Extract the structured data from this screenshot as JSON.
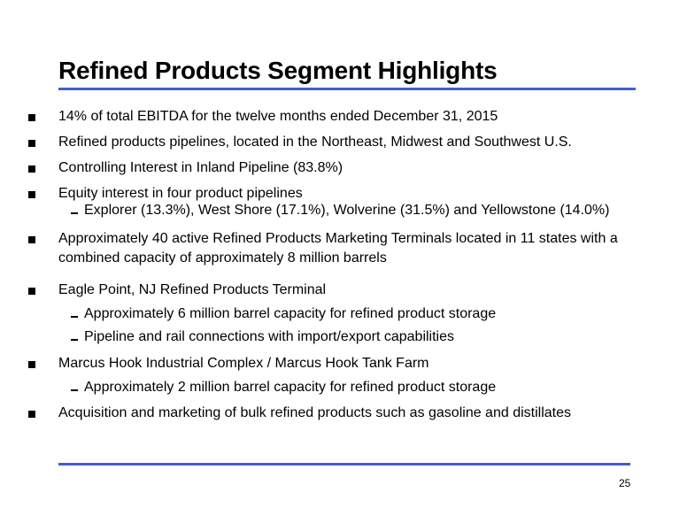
{
  "slide": {
    "title": "Refined Products Segment Highlights",
    "accent_color": "#3d5fd0",
    "page_number": "25"
  },
  "bullets": [
    {
      "text": "14% of total EBITDA for the twelve months ended December 31, 2015",
      "subs": []
    },
    {
      "text": "Refined products pipelines, located in the Northeast, Midwest and Southwest U.S.",
      "subs": []
    },
    {
      "text": "Controlling Interest in Inland Pipeline (83.8%)",
      "subs": []
    },
    {
      "text": "Equity interest in four product pipelines",
      "subs": [
        "Explorer (13.3%), West Shore (17.1%), Wolverine (31.5%) and Yellowstone (14.0%)"
      ]
    },
    {
      "text": "Approximately 40 active Refined Products Marketing Terminals located in 11 states with a combined capacity of approximately 8 million barrels",
      "subs": []
    },
    {
      "text": "Eagle Point, NJ Refined Products Terminal",
      "subs": [
        "Approximately 6 million barrel capacity for refined product storage",
        "Pipeline and rail connections with import/export capabilities"
      ]
    },
    {
      "text": "Marcus Hook Industrial Complex / Marcus Hook Tank Farm",
      "subs": [
        "Approximately 2 million barrel capacity for refined product storage"
      ]
    },
    {
      "text": "Acquisition and marketing of bulk refined products such as gasoline and distillates",
      "subs": []
    }
  ]
}
